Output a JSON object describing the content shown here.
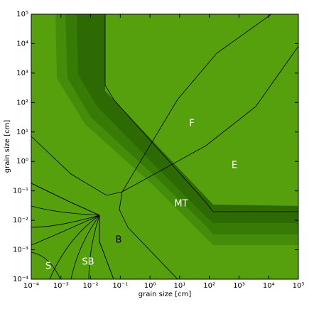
{
  "chart_data": {
    "type": "region-map",
    "xlabel": "grain size [cm]",
    "ylabel": "grain size [cm]",
    "xscale": "log",
    "yscale": "log",
    "xlim": [
      0.0001,
      100000
    ],
    "ylim": [
      0.0001,
      100000
    ],
    "xticks": [
      {
        "value": 0.0001,
        "label": "10⁻⁴"
      },
      {
        "value": 0.001,
        "label": "10⁻³"
      },
      {
        "value": 0.01,
        "label": "10⁻²"
      },
      {
        "value": 0.1,
        "label": "10⁻¹"
      },
      {
        "value": 1,
        "label": "10⁰"
      },
      {
        "value": 10,
        "label": "10¹"
      },
      {
        "value": 100,
        "label": "10²"
      },
      {
        "value": 1000,
        "label": "10³"
      },
      {
        "value": 10000,
        "label": "10⁴"
      },
      {
        "value": 100000,
        "label": "10⁵"
      }
    ],
    "yticks": [
      {
        "value": 0.0001,
        "label": "10⁻⁴"
      },
      {
        "value": 0.001,
        "label": "10⁻³"
      },
      {
        "value": 0.01,
        "label": "10⁻²"
      },
      {
        "value": 0.1,
        "label": "10⁻¹"
      },
      {
        "value": 1,
        "label": "10⁰"
      },
      {
        "value": 10,
        "label": "10¹"
      },
      {
        "value": 100,
        "label": "10²"
      },
      {
        "value": 1000,
        "label": "10³"
      },
      {
        "value": 10000,
        "label": "10⁴"
      },
      {
        "value": 100000,
        "label": "10⁵"
      }
    ],
    "annotations": [
      "S",
      "SB",
      "B",
      "MT",
      "F",
      "E"
    ]
  }
}
